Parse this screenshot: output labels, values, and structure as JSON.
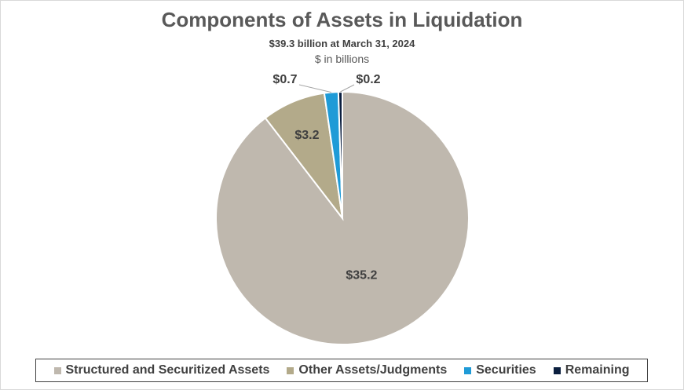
{
  "chart_data": {
    "type": "pie",
    "title": "Components of Assets in Liquidation",
    "subtitle": "$39.3 billion at March 31, 2024",
    "units_note": "$ in billions",
    "categories": [
      "Structured and Securitized Assets",
      "Other Assets/Judgments",
      "Securities",
      "Remaining"
    ],
    "values": [
      35.2,
      3.2,
      0.7,
      0.2
    ],
    "data_labels": [
      "$35.2",
      "$3.2",
      "$0.7",
      "$0.2"
    ],
    "colors": [
      "#bfb8ae",
      "#b3aa8a",
      "#1f9bd7",
      "#0b1f3f"
    ],
    "legend_position": "bottom"
  }
}
